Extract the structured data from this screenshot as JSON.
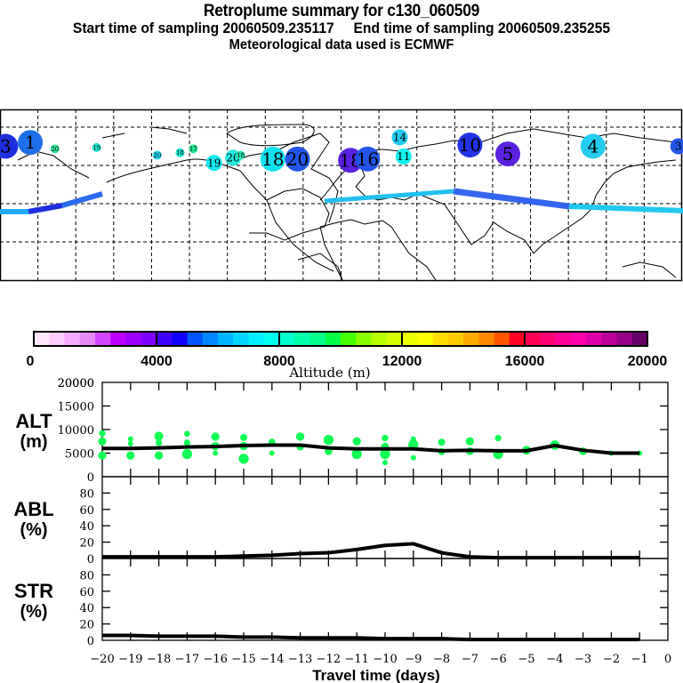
{
  "header": {
    "title": "Retroplume summary for c130_060509",
    "sampling_line": "Start time of sampling 20060509.235117     End time of sampling 20060509.235255",
    "start_label": "Start time of sampling",
    "start_time": "20060509.235117",
    "end_label": "End time of sampling",
    "end_time": "20060509.235255",
    "met_line": "Meteorological data used is ECMWF"
  },
  "map": {
    "description": "World map of retroplume trajectory positions, numbered by days before sampling, colored by altitude",
    "labels": [
      {
        "day": "3",
        "lon": -177,
        "lat": 45,
        "size": "large",
        "color": "#1f2fe0"
      },
      {
        "day": "1",
        "lon": -164,
        "lat": 48,
        "size": "large",
        "color": "#1f6fe8"
      },
      {
        "day": "20",
        "lon": -151,
        "lat": 43,
        "size": "small",
        "color": "#33e8a0"
      },
      {
        "day": "19",
        "lon": -129,
        "lat": 44,
        "size": "small",
        "color": "#22e8d0"
      },
      {
        "day": "20",
        "lon": -97,
        "lat": 38,
        "size": "small",
        "color": "#22d8f0"
      },
      {
        "day": "18",
        "lon": -85,
        "lat": 40,
        "size": "small",
        "color": "#22e8d0"
      },
      {
        "day": "17",
        "lon": -78,
        "lat": 43,
        "size": "small",
        "color": "#22e890"
      },
      {
        "day": "19",
        "lon": -67,
        "lat": 32,
        "size": "medium",
        "color": "#11e8f0"
      },
      {
        "day": "20",
        "lon": -57,
        "lat": 36,
        "size": "medium",
        "color": "#22e8e0"
      },
      {
        "day": "18",
        "lon": -53,
        "lat": 38,
        "size": "small",
        "color": "#22e8b0"
      },
      {
        "day": "18",
        "lon": -36,
        "lat": 35,
        "size": "large",
        "color": "#11e0f0"
      },
      {
        "day": "20",
        "lon": -23,
        "lat": 35,
        "size": "large",
        "color": "#2255e8"
      },
      {
        "day": "18",
        "lon": 5,
        "lat": 34,
        "size": "large",
        "color": "#5a22e0"
      },
      {
        "day": "16",
        "lon": 14,
        "lat": 35,
        "size": "large",
        "color": "#2255e8"
      },
      {
        "day": "11",
        "lon": 33,
        "lat": 37,
        "size": "medium",
        "color": "#11f0f0"
      },
      {
        "day": "14",
        "lon": 31,
        "lat": 52,
        "size": "medium",
        "color": "#22ccf0"
      },
      {
        "day": "10",
        "lon": 68,
        "lat": 46,
        "size": "large",
        "color": "#2233e8"
      },
      {
        "day": "5",
        "lon": 88,
        "lat": 39,
        "size": "large",
        "color": "#5a22e0"
      },
      {
        "day": "4",
        "lon": 133,
        "lat": 45,
        "size": "large",
        "color": "#22ccf0"
      },
      {
        "day": "3",
        "lon": 178,
        "lat": 45,
        "size": "medium",
        "color": "#2255e8"
      }
    ]
  },
  "colorbar": {
    "xlabel": "Altitude (m)",
    "ticks": [
      "0",
      "4000",
      "8000",
      "12000",
      "16000",
      "20000"
    ],
    "colors": [
      "#ffe8ff",
      "#ffccff",
      "#f5aaff",
      "#e68af5",
      "#d446ff",
      "#bf00ff",
      "#a000ff",
      "#7f00ff",
      "#4000ff",
      "#1000ff",
      "#0055ff",
      "#0088ff",
      "#00b5ff",
      "#00d5ff",
      "#00f0ff",
      "#00ffee",
      "#00ffcc",
      "#00ffaa",
      "#00ff88",
      "#00ff44",
      "#44ff00",
      "#88ff00",
      "#b5ff00",
      "#d5ff00",
      "#eeff00",
      "#ffff00",
      "#ffdd00",
      "#ffcc00",
      "#ffaa00",
      "#ff8800",
      "#ff5500",
      "#ff0022",
      "#ff0055",
      "#ff0077",
      "#ff0099",
      "#ff00aa",
      "#dd00aa",
      "#bb0099",
      "#990088",
      "#660066"
    ]
  },
  "chart_data": [
    {
      "type": "line",
      "title": "ALT (m)",
      "ylabel": "ALT\n(m)",
      "ylabel_top": "ALT",
      "ylabel_bottom": "(m)",
      "ylim": [
        0,
        20000
      ],
      "yticks": [
        "0",
        "5000",
        "10000",
        "15000",
        "20000"
      ],
      "x": [
        -20,
        -19,
        -18,
        -17,
        -16,
        -15,
        -14,
        -13,
        -12,
        -11,
        -10,
        -9,
        -8,
        -7,
        -6,
        -5,
        -4,
        -3,
        -2,
        -1
      ],
      "series": [
        {
          "name": "mean altitude",
          "values": [
            6000,
            6000,
            6100,
            6300,
            6400,
            6600,
            6700,
            6700,
            6100,
            5900,
            5900,
            5900,
            5500,
            5600,
            5500,
            5500,
            6600,
            5600,
            5000,
            5000
          ]
        }
      ],
      "scatter": {
        "name": "altitude samples",
        "color": "#11ff55",
        "points": [
          {
            "x": -20,
            "y": 9200
          },
          {
            "x": -20,
            "y": 7500
          },
          {
            "x": -20,
            "y": 4500
          },
          {
            "x": -19,
            "y": 8000
          },
          {
            "x": -19,
            "y": 7000
          },
          {
            "x": -19,
            "y": 4500
          },
          {
            "x": -18,
            "y": 8600
          },
          {
            "x": -18,
            "y": 7200
          },
          {
            "x": -18,
            "y": 4500
          },
          {
            "x": -17,
            "y": 9100
          },
          {
            "x": -17,
            "y": 7200
          },
          {
            "x": -17,
            "y": 4800
          },
          {
            "x": -16,
            "y": 8500
          },
          {
            "x": -16,
            "y": 6500
          },
          {
            "x": -16,
            "y": 5000
          },
          {
            "x": -15,
            "y": 8300
          },
          {
            "x": -15,
            "y": 6500
          },
          {
            "x": -15,
            "y": 3800
          },
          {
            "x": -14,
            "y": 7300
          },
          {
            "x": -14,
            "y": 5000
          },
          {
            "x": -13,
            "y": 8500
          },
          {
            "x": -13,
            "y": 6300
          },
          {
            "x": -12,
            "y": 7800
          },
          {
            "x": -12,
            "y": 5400
          },
          {
            "x": -11,
            "y": 7500
          },
          {
            "x": -11,
            "y": 4800
          },
          {
            "x": -10,
            "y": 8200
          },
          {
            "x": -10,
            "y": 6400
          },
          {
            "x": -10,
            "y": 4800
          },
          {
            "x": -10,
            "y": 3000
          },
          {
            "x": -9,
            "y": 8000
          },
          {
            "x": -9,
            "y": 6800
          },
          {
            "x": -9,
            "y": 4000
          },
          {
            "x": -8,
            "y": 7300
          },
          {
            "x": -8,
            "y": 5300
          },
          {
            "x": -7,
            "y": 7500
          },
          {
            "x": -7,
            "y": 5400
          },
          {
            "x": -6,
            "y": 8200
          },
          {
            "x": -6,
            "y": 4800
          },
          {
            "x": -5,
            "y": 5600
          },
          {
            "x": -4,
            "y": 6700
          },
          {
            "x": -3,
            "y": 5400
          },
          {
            "x": -2,
            "y": 5000
          },
          {
            "x": -1,
            "y": 5000
          }
        ]
      }
    },
    {
      "type": "line",
      "title": "ABL (%)",
      "ylabel_top": "ABL",
      "ylabel_bottom": "(%)",
      "ylim": [
        0,
        100
      ],
      "yticks": [
        "0",
        "20",
        "40",
        "60",
        "80"
      ],
      "x": [
        -20,
        -19,
        -18,
        -17,
        -16,
        -15,
        -14,
        -13,
        -12,
        -11,
        -10,
        -9,
        -8,
        -7,
        -6,
        -5,
        -4,
        -3,
        -2,
        -1
      ],
      "series": [
        {
          "name": "ABL fraction",
          "values": [
            2,
            2,
            2,
            2,
            2,
            3,
            4,
            6,
            7,
            11,
            16,
            18,
            7,
            2,
            1,
            1,
            1,
            1,
            1,
            1
          ]
        }
      ]
    },
    {
      "type": "line",
      "title": "STR (%)",
      "ylabel_top": "STR",
      "ylabel_bottom": "(%)",
      "ylim": [
        0,
        100
      ],
      "yticks": [
        "0",
        "20",
        "40",
        "60",
        "80"
      ],
      "x": [
        -20,
        -19,
        -18,
        -17,
        -16,
        -15,
        -14,
        -13,
        -12,
        -11,
        -10,
        -9,
        -8,
        -7,
        -6,
        -5,
        -4,
        -3,
        -2,
        -1
      ],
      "xlabel": "Travel time (days)",
      "xticks": [
        "−20",
        "−19",
        "−18",
        "−17",
        "−16",
        "−15",
        "−14",
        "−13",
        "−12",
        "−11",
        "−10",
        "−9",
        "−8",
        "−7",
        "−6",
        "−5",
        "−4",
        "−3",
        "−2",
        "−1",
        "0"
      ],
      "xlim": [
        -20,
        0
      ],
      "series": [
        {
          "name": "stratospheric fraction",
          "values": [
            6,
            6,
            5,
            5,
            5,
            4,
            4,
            3,
            3,
            3,
            2,
            2,
            2,
            1,
            1,
            1,
            1,
            1,
            1,
            1
          ]
        }
      ]
    }
  ]
}
